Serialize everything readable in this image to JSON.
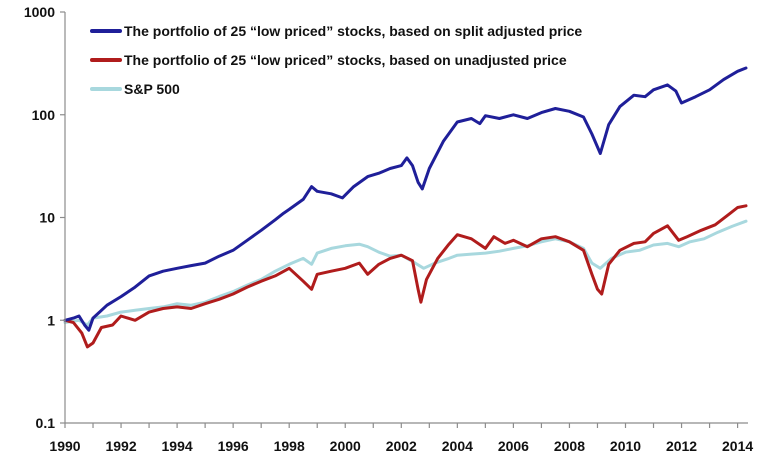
{
  "chart_data": {
    "type": "line",
    "y_scale": "log",
    "ylim": [
      0.1,
      1000
    ],
    "xlim": [
      1990,
      2014.3
    ],
    "y_ticks": [
      "0.1",
      "1",
      "10",
      "100",
      "1000"
    ],
    "x_ticks": [
      "1990",
      "1992",
      "1994",
      "1996",
      "1998",
      "2000",
      "2002",
      "2004",
      "2006",
      "2008",
      "2010",
      "2012",
      "2014"
    ],
    "grid": false,
    "legend_position": "top-left",
    "series": [
      {
        "name": "The portfolio of 25 “low priced” stocks, based on split adjusted price",
        "color": "#1f1f99",
        "points": [
          [
            1990.0,
            1.0
          ],
          [
            1990.3,
            1.05
          ],
          [
            1990.5,
            1.1
          ],
          [
            1990.7,
            0.9
          ],
          [
            1990.85,
            0.8
          ],
          [
            1991.0,
            1.05
          ],
          [
            1991.5,
            1.4
          ],
          [
            1992.0,
            1.7
          ],
          [
            1992.5,
            2.1
          ],
          [
            1993.0,
            2.7
          ],
          [
            1993.5,
            3.0
          ],
          [
            1994.0,
            3.2
          ],
          [
            1994.5,
            3.4
          ],
          [
            1995.0,
            3.6
          ],
          [
            1995.5,
            4.2
          ],
          [
            1996.0,
            4.8
          ],
          [
            1996.5,
            6.0
          ],
          [
            1997.0,
            7.5
          ],
          [
            1997.5,
            9.5
          ],
          [
            1997.8,
            11.0
          ],
          [
            1998.0,
            12.0
          ],
          [
            1998.5,
            15.0
          ],
          [
            1998.8,
            20.0
          ],
          [
            1999.0,
            18.0
          ],
          [
            1999.5,
            17.0
          ],
          [
            1999.9,
            15.5
          ],
          [
            2000.3,
            20.0
          ],
          [
            2000.8,
            25.0
          ],
          [
            2001.2,
            27.0
          ],
          [
            2001.6,
            30.0
          ],
          [
            2002.0,
            32.0
          ],
          [
            2002.2,
            38.0
          ],
          [
            2002.4,
            32.0
          ],
          [
            2002.6,
            22.0
          ],
          [
            2002.75,
            19.0
          ],
          [
            2003.0,
            30.0
          ],
          [
            2003.5,
            55.0
          ],
          [
            2004.0,
            85.0
          ],
          [
            2004.5,
            92.0
          ],
          [
            2004.8,
            82.0
          ],
          [
            2005.0,
            98.0
          ],
          [
            2005.5,
            92.0
          ],
          [
            2006.0,
            100.0
          ],
          [
            2006.5,
            92.0
          ],
          [
            2007.0,
            105.0
          ],
          [
            2007.5,
            115.0
          ],
          [
            2008.0,
            108.0
          ],
          [
            2008.5,
            95.0
          ],
          [
            2008.8,
            65.0
          ],
          [
            2009.1,
            42.0
          ],
          [
            2009.4,
            80.0
          ],
          [
            2009.8,
            120.0
          ],
          [
            2010.3,
            155.0
          ],
          [
            2010.7,
            150.0
          ],
          [
            2011.0,
            175.0
          ],
          [
            2011.5,
            195.0
          ],
          [
            2011.8,
            170.0
          ],
          [
            2012.0,
            130.0
          ],
          [
            2012.5,
            150.0
          ],
          [
            2013.0,
            175.0
          ],
          [
            2013.5,
            220.0
          ],
          [
            2014.0,
            265.0
          ],
          [
            2014.3,
            285.0
          ]
        ]
      },
      {
        "name": "The portfolio of 25 “low priced” stocks, based on unadjusted price",
        "color": "#b01c1c",
        "points": [
          [
            1990.0,
            1.0
          ],
          [
            1990.3,
            0.95
          ],
          [
            1990.6,
            0.75
          ],
          [
            1990.8,
            0.55
          ],
          [
            1991.0,
            0.6
          ],
          [
            1991.3,
            0.85
          ],
          [
            1991.7,
            0.9
          ],
          [
            1992.0,
            1.1
          ],
          [
            1992.5,
            1.0
          ],
          [
            1993.0,
            1.2
          ],
          [
            1993.5,
            1.3
          ],
          [
            1994.0,
            1.35
          ],
          [
            1994.5,
            1.3
          ],
          [
            1995.0,
            1.45
          ],
          [
            1995.5,
            1.6
          ],
          [
            1996.0,
            1.8
          ],
          [
            1996.5,
            2.1
          ],
          [
            1997.0,
            2.4
          ],
          [
            1997.5,
            2.7
          ],
          [
            1998.0,
            3.2
          ],
          [
            1998.5,
            2.4
          ],
          [
            1998.8,
            2.0
          ],
          [
            1999.0,
            2.8
          ],
          [
            1999.5,
            3.0
          ],
          [
            2000.0,
            3.2
          ],
          [
            2000.5,
            3.6
          ],
          [
            2000.8,
            2.8
          ],
          [
            2001.2,
            3.5
          ],
          [
            2001.6,
            4.0
          ],
          [
            2002.0,
            4.3
          ],
          [
            2002.4,
            3.8
          ],
          [
            2002.6,
            2.0
          ],
          [
            2002.7,
            1.5
          ],
          [
            2002.9,
            2.5
          ],
          [
            2003.3,
            4.0
          ],
          [
            2003.7,
            5.5
          ],
          [
            2004.0,
            6.8
          ],
          [
            2004.5,
            6.2
          ],
          [
            2005.0,
            5.0
          ],
          [
            2005.3,
            6.5
          ],
          [
            2005.7,
            5.6
          ],
          [
            2006.0,
            6.0
          ],
          [
            2006.5,
            5.2
          ],
          [
            2007.0,
            6.2
          ],
          [
            2007.5,
            6.5
          ],
          [
            2008.0,
            5.8
          ],
          [
            2008.5,
            4.8
          ],
          [
            2008.8,
            2.8
          ],
          [
            2009.0,
            2.0
          ],
          [
            2009.15,
            1.8
          ],
          [
            2009.4,
            3.5
          ],
          [
            2009.8,
            4.8
          ],
          [
            2010.3,
            5.6
          ],
          [
            2010.7,
            5.8
          ],
          [
            2011.0,
            7.0
          ],
          [
            2011.5,
            8.3
          ],
          [
            2011.9,
            6.0
          ],
          [
            2012.2,
            6.5
          ],
          [
            2012.7,
            7.5
          ],
          [
            2013.2,
            8.5
          ],
          [
            2013.7,
            10.8
          ],
          [
            2014.0,
            12.5
          ],
          [
            2014.3,
            13.0
          ]
        ]
      },
      {
        "name": "S&P 500",
        "color": "#a8d8de",
        "points": [
          [
            1990.0,
            0.95
          ],
          [
            1990.5,
            1.0
          ],
          [
            1990.8,
            0.9
          ],
          [
            1991.0,
            1.05
          ],
          [
            1991.5,
            1.1
          ],
          [
            1992.0,
            1.2
          ],
          [
            1992.5,
            1.25
          ],
          [
            1993.0,
            1.3
          ],
          [
            1993.5,
            1.35
          ],
          [
            1994.0,
            1.45
          ],
          [
            1994.5,
            1.4
          ],
          [
            1995.0,
            1.5
          ],
          [
            1995.5,
            1.7
          ],
          [
            1996.0,
            1.9
          ],
          [
            1996.5,
            2.2
          ],
          [
            1997.0,
            2.5
          ],
          [
            1997.5,
            3.0
          ],
          [
            1998.0,
            3.5
          ],
          [
            1998.5,
            4.0
          ],
          [
            1998.8,
            3.5
          ],
          [
            1999.0,
            4.5
          ],
          [
            1999.5,
            5.0
          ],
          [
            2000.0,
            5.3
          ],
          [
            2000.5,
            5.5
          ],
          [
            2000.8,
            5.2
          ],
          [
            2001.2,
            4.6
          ],
          [
            2001.6,
            4.2
          ],
          [
            2002.0,
            4.3
          ],
          [
            2002.5,
            3.6
          ],
          [
            2002.8,
            3.2
          ],
          [
            2003.2,
            3.6
          ],
          [
            2003.7,
            4.0
          ],
          [
            2004.0,
            4.3
          ],
          [
            2004.5,
            4.4
          ],
          [
            2005.0,
            4.5
          ],
          [
            2005.5,
            4.7
          ],
          [
            2006.0,
            5.0
          ],
          [
            2006.5,
            5.3
          ],
          [
            2007.0,
            5.8
          ],
          [
            2007.5,
            6.2
          ],
          [
            2008.0,
            5.8
          ],
          [
            2008.5,
            5.0
          ],
          [
            2008.8,
            3.6
          ],
          [
            2009.1,
            3.2
          ],
          [
            2009.5,
            4.0
          ],
          [
            2010.0,
            4.6
          ],
          [
            2010.5,
            4.8
          ],
          [
            2011.0,
            5.4
          ],
          [
            2011.5,
            5.6
          ],
          [
            2011.9,
            5.2
          ],
          [
            2012.3,
            5.8
          ],
          [
            2012.8,
            6.2
          ],
          [
            2013.3,
            7.2
          ],
          [
            2013.8,
            8.2
          ],
          [
            2014.3,
            9.2
          ]
        ]
      }
    ]
  }
}
